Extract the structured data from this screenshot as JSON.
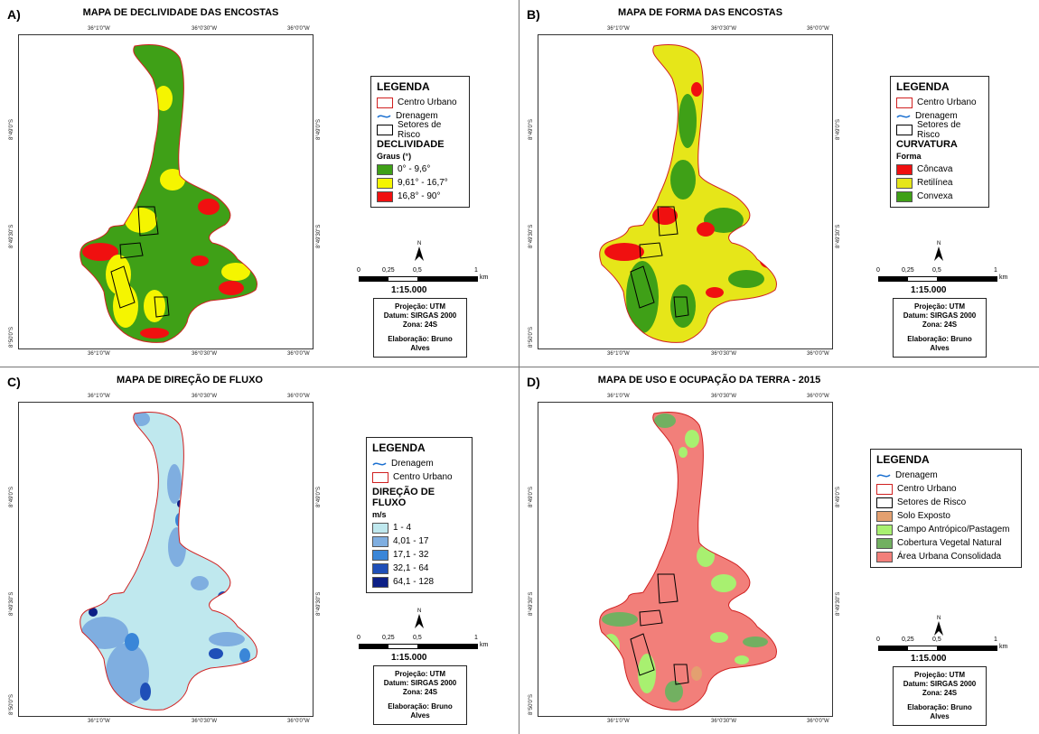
{
  "ticks": {
    "top": [
      "36°1'0\"W",
      "36°0'30\"W",
      "36°0'0\"W"
    ],
    "bottom": [
      "36°1'0\"W",
      "36°0'30\"W",
      "36°0'0\"W"
    ],
    "left": [
      "8°49'0\"S",
      "8°49'30\"S",
      "8°50'0\"S"
    ],
    "right": [
      "8°49'0\"S",
      "8°49'30\"S",
      "8°50'0\"S"
    ]
  },
  "scale": {
    "labels": [
      "0",
      "0,25",
      "0,5",
      "1"
    ],
    "unit": "km",
    "ratio": "1:15.000"
  },
  "north_label": "N",
  "info": {
    "projecao": "Projeção: UTM",
    "datum": "Datum: SIRGAS 2000",
    "zona": "Zona: 24S",
    "autor": "Elaboração: Bruno Alves"
  },
  "panels": {
    "a": {
      "letter": "A)",
      "title": "MAPA DE DECLIVIDADE DAS ENCOSTAS",
      "legend_title": "LEGENDA",
      "items": [
        {
          "label": "Centro Urbano"
        },
        {
          "label": "Drenagem"
        },
        {
          "label": "Setores de Risco"
        }
      ],
      "section": "DECLIVIDADE",
      "unit": "Graus (°)",
      "classes": [
        {
          "label": "0° - 9,6°",
          "color": "#3fa017"
        },
        {
          "label": "9,61° - 16,7°",
          "color": "#f5f500"
        },
        {
          "label": "16,8° - 90°",
          "color": "#f01010"
        }
      ]
    },
    "b": {
      "letter": "B)",
      "title": "MAPA DE FORMA DAS ENCOSTAS",
      "legend_title": "LEGENDA",
      "items": [
        {
          "label": "Centro Urbano"
        },
        {
          "label": "Drenagem"
        },
        {
          "label": "Setores de Risco"
        }
      ],
      "section": "CURVATURA",
      "unit": "Forma",
      "classes": [
        {
          "label": "Côncava",
          "color": "#f01010"
        },
        {
          "label": "Retilínea",
          "color": "#e6e619"
        },
        {
          "label": "Convexa",
          "color": "#3fa017"
        }
      ]
    },
    "c": {
      "letter": "C)",
      "title": "MAPA DE DIREÇÃO DE FLUXO",
      "legend_title": "LEGENDA",
      "items": [
        {
          "label": "Drenagem"
        },
        {
          "label": "Centro Urbano"
        }
      ],
      "section": "DIREÇÃO DE FLUXO",
      "unit": "m/s",
      "classes": [
        {
          "label": "1 - 4",
          "color": "#bfe8ee"
        },
        {
          "label": "4,01 - 17",
          "color": "#7faee0"
        },
        {
          "label": "17,1 - 32",
          "color": "#3a86d8"
        },
        {
          "label": "32,1 - 64",
          "color": "#1f4fb8"
        },
        {
          "label": "64,1 - 128",
          "color": "#0c1f86"
        }
      ]
    },
    "d": {
      "letter": "D)",
      "title": "MAPA DE USO E OCUPAÇÃO DA TERRA - 2015",
      "legend_title": "LEGENDA",
      "items": [
        {
          "label": "Drenagem"
        },
        {
          "label": "Centro Urbano"
        },
        {
          "label": "Setores de Risco"
        }
      ],
      "classes": [
        {
          "label": "Solo Exposto",
          "color": "#e3a070"
        },
        {
          "label": "Campo Antrópico/Pastagem",
          "color": "#a8f070"
        },
        {
          "label": "Cobertura Vegetal Natural",
          "color": "#72b061"
        },
        {
          "label": "Área Urbana Consolidada",
          "color": "#f27f7a"
        }
      ]
    }
  },
  "colors": {
    "urban_outline": "#d02020",
    "drainage": "#1a6fd0",
    "risk_outline": "#000000",
    "a_base": "#3fa017",
    "b_base": "#3fa017",
    "c_base": "#bfe8ee",
    "d_base": "#f27f7a"
  }
}
